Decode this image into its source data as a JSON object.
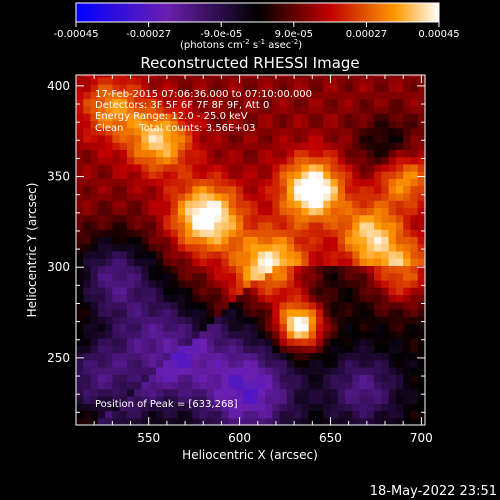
{
  "chart_data": {
    "type": "heatmap",
    "title": "Reconstructed RHESSI Image",
    "xlabel": "Heliocentric X (arcsec)",
    "ylabel": "Heliocentric Y (arcsec)",
    "xlim": [
      510,
      702
    ],
    "ylim": [
      213,
      406
    ],
    "x_ticks": [
      550,
      600,
      650,
      700
    ],
    "y_ticks": [
      250,
      300,
      350,
      400
    ],
    "colorbar": {
      "range": [
        -0.00045,
        0.00045
      ],
      "tick_values": [
        -0.00045,
        -0.00027,
        -9e-05,
        9e-05,
        0.00027,
        0.00045
      ],
      "tick_labels": [
        "-0.00045",
        "-0.00027",
        "-9.0e-05",
        "9.0e-05",
        "0.00027",
        "0.00045"
      ],
      "unit_label": "(photons cm",
      "unit_sup1": "-2",
      "unit_mid": " s",
      "unit_sup2": "-1",
      "unit_mid2": " asec",
      "unit_sup3": "-2",
      "unit_end": ")"
    },
    "colors": {
      "neg_low": "#0000ff",
      "neg_mid": "#6a1fb0",
      "zero": "#000000",
      "pos_mid": "#c00000",
      "pos_high": "#ff9a00",
      "pos_peak": "#ffffff"
    },
    "peak": {
      "x": 633,
      "y": 268
    },
    "annotations": {
      "time_range": "17-Feb-2015 07:06:36.000 to 07:10:00.000",
      "detectors": "Detectors: 3F 5F 6F 7F 8F 9F, Att 0",
      "energy": "Energy Range: 12.0 - 25.0 keV",
      "method": "Clean     Total counts: 3.56E+03",
      "peak_label": "Position of Peak = [633,268]"
    },
    "bright_blobs": [
      {
        "x": 633,
        "y": 268,
        "amp": 1.0,
        "r": 9
      },
      {
        "x": 640,
        "y": 343,
        "amp": 0.85,
        "r": 12
      },
      {
        "x": 582,
        "y": 328,
        "amp": 0.8,
        "r": 13
      },
      {
        "x": 556,
        "y": 370,
        "amp": 0.6,
        "r": 12
      },
      {
        "x": 617,
        "y": 300,
        "amp": 0.7,
        "r": 14
      },
      {
        "x": 672,
        "y": 318,
        "amp": 0.6,
        "r": 12
      },
      {
        "x": 690,
        "y": 296,
        "amp": 0.55,
        "r": 12
      },
      {
        "x": 690,
        "y": 350,
        "amp": 0.55,
        "r": 11
      },
      {
        "x": 530,
        "y": 388,
        "amp": 0.45,
        "r": 12
      }
    ],
    "dark_blobs": [
      {
        "x": 560,
        "y": 258,
        "amp": -0.65,
        "r": 20
      },
      {
        "x": 605,
        "y": 232,
        "amp": -0.6,
        "r": 18
      },
      {
        "x": 531,
        "y": 295,
        "amp": -0.6,
        "r": 17
      },
      {
        "x": 682,
        "y": 365,
        "amp": -0.35,
        "r": 12
      },
      {
        "x": 668,
        "y": 233,
        "amp": -0.4,
        "r": 14
      },
      {
        "x": 520,
        "y": 238,
        "amp": -0.55,
        "r": 18
      }
    ]
  },
  "timestamp": "18-May-2022 23:51"
}
